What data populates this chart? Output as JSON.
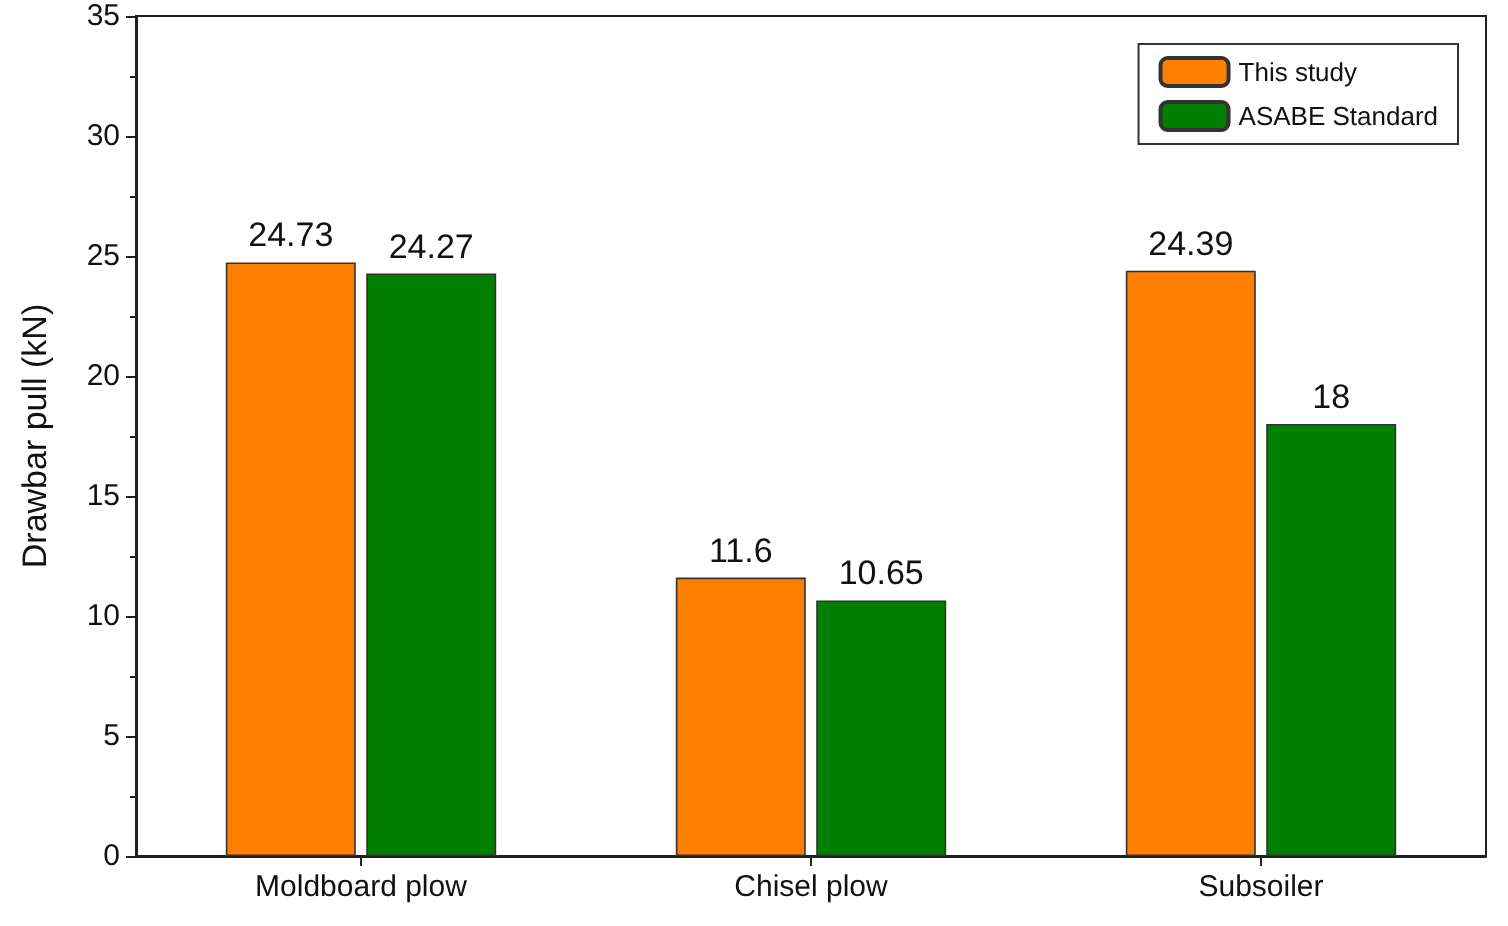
{
  "chart_data": {
    "type": "bar",
    "ylabel": "Drawbar pull (kN)",
    "categories": [
      "Moldboard plow",
      "Chisel plow",
      "Subsoiler"
    ],
    "series": [
      {
        "name": "This study",
        "color": "#ff8000",
        "values": [
          24.73,
          11.6,
          24.39
        ]
      },
      {
        "name": "ASABE Standard",
        "color": "#007f00",
        "values": [
          24.27,
          10.65,
          18
        ]
      }
    ],
    "ylim": [
      0,
      35
    ],
    "yticks": [
      0,
      5,
      10,
      15,
      20,
      25,
      30,
      35
    ],
    "data_labels": true,
    "legend": "top right",
    "grid": false
  }
}
